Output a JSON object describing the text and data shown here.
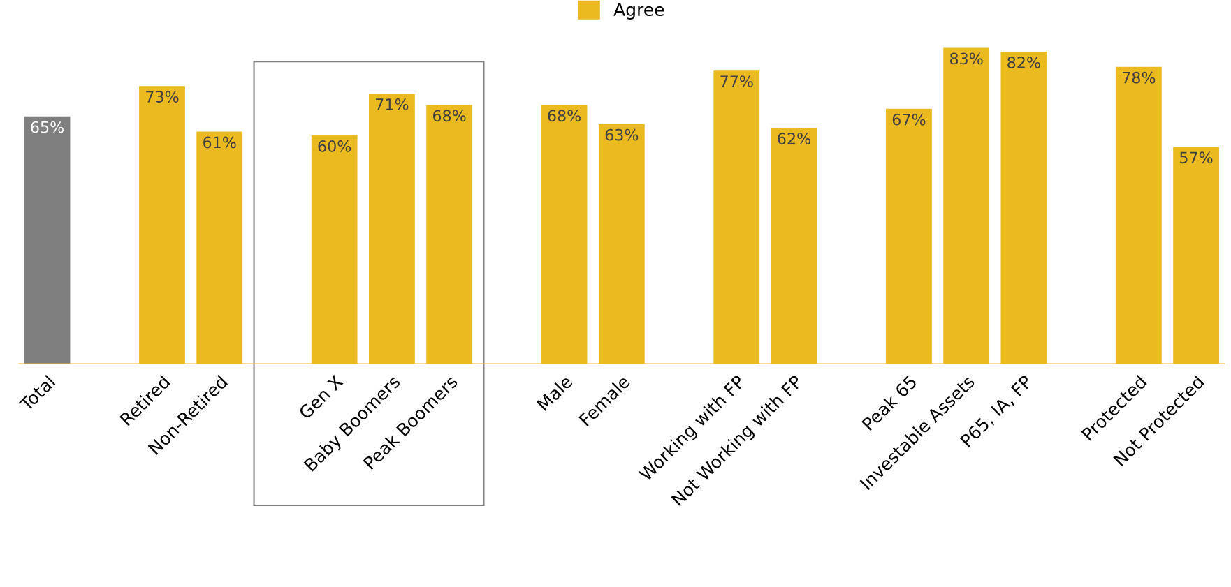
{
  "chart_data": {
    "type": "bar",
    "categories": [
      "Total",
      null,
      "Retired",
      "Non-Retired",
      null,
      "Gen X",
      "Baby Boomers",
      "Peak Boomers",
      null,
      "Male",
      "Female",
      null,
      "Working with FP",
      "Not Working with FP",
      null,
      "Peak 65",
      "Investable Assets",
      "P65, IA, FP",
      null,
      "Protected",
      "Not Protected"
    ],
    "series": [
      {
        "name": "Agree",
        "color": "#ebb920",
        "colors": [
          "#7f7f7f",
          null,
          "#ebb920",
          "#ebb920",
          null,
          "#ebb920",
          "#ebb920",
          "#ebb920",
          null,
          "#ebb920",
          "#ebb920",
          null,
          "#ebb920",
          "#ebb920",
          null,
          "#ebb920",
          "#ebb920",
          "#ebb920",
          null,
          "#ebb920",
          "#ebb920"
        ],
        "values": [
          65,
          null,
          73,
          61,
          null,
          60,
          71,
          68,
          null,
          68,
          63,
          null,
          77,
          62,
          null,
          67,
          83,
          82,
          null,
          78,
          57
        ],
        "value_labels": [
          "65%",
          null,
          "73%",
          "61%",
          null,
          "60%",
          "71%",
          "68%",
          null,
          "68%",
          "63%",
          null,
          "77%",
          "62%",
          null,
          "67%",
          "83%",
          "82%",
          null,
          "78%",
          "57%"
        ]
      }
    ],
    "legend": "top",
    "grid": false
  }
}
